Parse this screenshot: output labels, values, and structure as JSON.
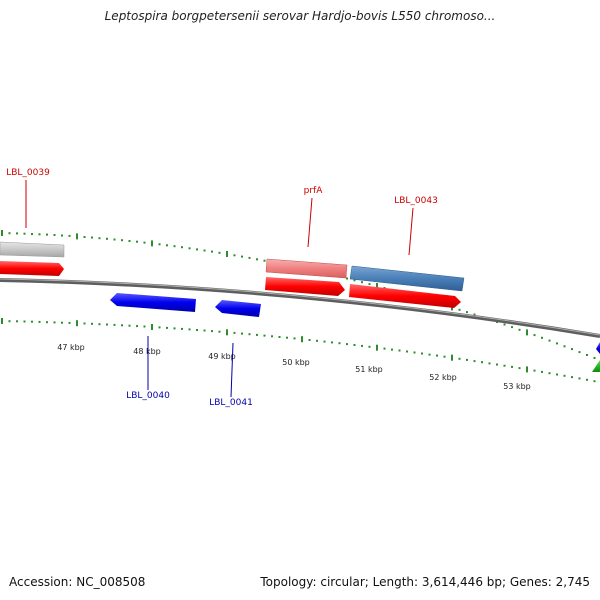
{
  "title": "Leptospira borgpetersenii serovar Hardjo-bovis L550 chromoso...",
  "footer": {
    "accession": "Accession: NC_008508",
    "topology": "Topology: circular; Length: 3,614,446 bp; Genes: 2,745"
  },
  "colors": {
    "backbone": "#777777",
    "tick": "#2e8b2e",
    "forward_cds": "#ff0000",
    "reverse_cds": "#0000ee",
    "forward_gene_light": "#f08080",
    "forward_gene_blue": "#4a7fb8",
    "gray_gene": "#c8c8c8",
    "green_gene": "#22bb22",
    "label_forward": "#cc0000",
    "label_reverse": "#0000aa"
  },
  "scale": {
    "unit": "kbp",
    "labels": [
      {
        "kbp": 47,
        "text": "47 kbp"
      },
      {
        "kbp": 48,
        "text": "48 kbp"
      },
      {
        "kbp": 49,
        "text": "49 kbp"
      },
      {
        "kbp": 50,
        "text": "50 kbp"
      },
      {
        "kbp": 51,
        "text": "51 kbp"
      },
      {
        "kbp": 52,
        "text": "52 kbp"
      },
      {
        "kbp": 53,
        "text": "53 kbp"
      }
    ]
  },
  "gene_labels": [
    {
      "id": "LBL_0039",
      "text": "LBL_0039",
      "strand": "forward"
    },
    {
      "id": "LBL_0040",
      "text": "LBL_0040",
      "strand": "reverse"
    },
    {
      "id": "LBL_0041",
      "text": "LBL_0041",
      "strand": "reverse"
    },
    {
      "id": "prfA",
      "text": "prfA",
      "strand": "forward"
    },
    {
      "id": "LBL_0043",
      "text": "LBL_0043",
      "strand": "forward"
    }
  ]
}
